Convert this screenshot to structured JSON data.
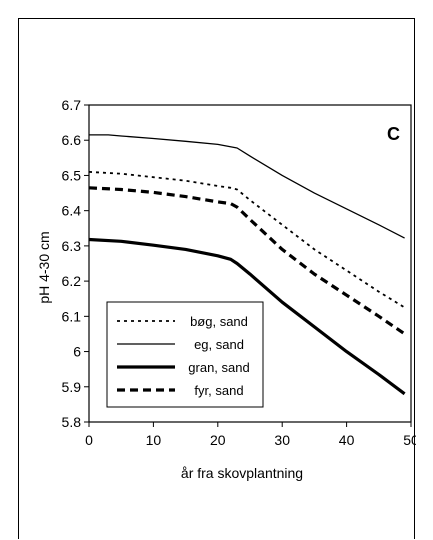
{
  "chart_data": {
    "type": "line",
    "panel_label": "C",
    "xlabel": "år fra skovplantning",
    "ylabel": "pH 4-30 cm",
    "xlim": [
      0,
      50
    ],
    "ylim": [
      5.8,
      6.7
    ],
    "xticks": [
      0,
      10,
      20,
      30,
      40,
      50
    ],
    "yticks": [
      5.8,
      5.9,
      6,
      6.1,
      6.2,
      6.3,
      6.4,
      6.5,
      6.6,
      6.7
    ],
    "ytick_labels": [
      "5.8",
      "5.9",
      "6",
      "6.1",
      "6.2",
      "6.3",
      "6.4",
      "6.5",
      "6.6",
      "6.7"
    ],
    "grid": false,
    "legend_position": "bottom-left",
    "series": [
      {
        "name": "bøg, sand",
        "style": "dotted",
        "x": [
          0,
          5,
          10,
          15,
          20,
          22,
          23,
          25,
          30,
          35,
          40,
          45,
          49
        ],
        "y": [
          6.51,
          6.505,
          6.495,
          6.485,
          6.47,
          6.465,
          6.46,
          6.43,
          6.36,
          6.29,
          6.23,
          6.17,
          6.125
        ]
      },
      {
        "name": "eg, sand",
        "style": "thin",
        "x": [
          0,
          3,
          5,
          10,
          15,
          20,
          23,
          25,
          30,
          35,
          40,
          45,
          49
        ],
        "y": [
          6.615,
          6.615,
          6.612,
          6.605,
          6.597,
          6.588,
          6.578,
          6.555,
          6.5,
          6.45,
          6.405,
          6.36,
          6.322
        ]
      },
      {
        "name": "gran, sand",
        "style": "thick",
        "x": [
          0,
          5,
          10,
          15,
          20,
          22,
          23,
          25,
          30,
          35,
          40,
          45,
          49
        ],
        "y": [
          6.318,
          6.313,
          6.302,
          6.29,
          6.272,
          6.262,
          6.25,
          6.22,
          6.14,
          6.07,
          6.0,
          5.935,
          5.88
        ]
      },
      {
        "name": "fyr, sand",
        "style": "thick-dashed",
        "x": [
          0,
          5,
          10,
          15,
          20,
          22,
          23,
          25,
          30,
          35,
          40,
          45,
          49
        ],
        "y": [
          6.465,
          6.46,
          6.452,
          6.44,
          6.425,
          6.42,
          6.41,
          6.375,
          6.29,
          6.22,
          6.16,
          6.1,
          6.05
        ]
      }
    ]
  }
}
